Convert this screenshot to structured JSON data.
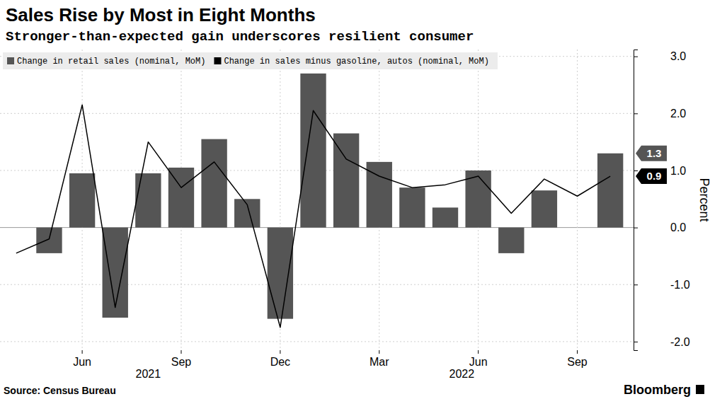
{
  "chart_data": {
    "type": "bar",
    "title": "Sales Rise by Most in Eight Months",
    "subtitle": "Stronger-than-expected gain underscores resilient consumer",
    "y_label": "Percent",
    "source": "Source: Census Bureau",
    "credit": "Bloomberg",
    "categories": [
      null,
      null,
      "Jun",
      null,
      null,
      "Sep",
      null,
      null,
      "Dec",
      null,
      null,
      "Mar",
      null,
      null,
      "Jun",
      null,
      null,
      "Sep",
      null
    ],
    "category_groups": [
      {
        "label": "2021",
        "from": 0,
        "to": 8
      },
      {
        "label": "2022",
        "from": 9,
        "to": 18
      }
    ],
    "series": [
      {
        "name": "Change in retail sales (nominal, MoM)",
        "type": "bar",
        "color": "#555555",
        "values": [
          0.0,
          -0.45,
          0.95,
          -1.58,
          0.95,
          1.05,
          1.55,
          0.5,
          -1.6,
          2.7,
          1.65,
          1.15,
          0.7,
          0.35,
          1.0,
          -0.45,
          0.65,
          0.0,
          1.3
        ],
        "last_value_label": "1.3"
      },
      {
        "name": "Change in sales minus gasoline, autos (nominal, MoM)",
        "type": "line",
        "color": "#000000",
        "values": [
          -0.45,
          -0.2,
          2.15,
          -1.4,
          1.5,
          0.7,
          1.15,
          0.4,
          -1.75,
          2.05,
          1.2,
          0.9,
          0.7,
          0.75,
          0.9,
          0.25,
          0.85,
          0.55,
          0.9
        ],
        "last_value_label": "0.9"
      }
    ],
    "ylim": [
      -2.15,
      3.12
    ],
    "yticks": [
      {
        "value": -2,
        "label": "-2.0"
      },
      {
        "value": -1,
        "label": "-1.0"
      },
      {
        "value": 0,
        "label": "0.0"
      },
      {
        "value": 1,
        "label": "1.0"
      },
      {
        "value": 2,
        "label": "2.0"
      },
      {
        "value": 3,
        "label": "3.0"
      }
    ],
    "grid": true,
    "legend": "top-left"
  }
}
